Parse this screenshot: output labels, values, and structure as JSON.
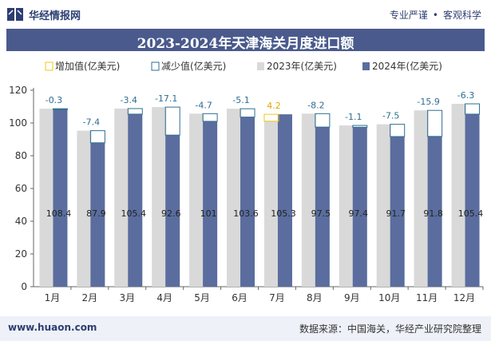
{
  "header": {
    "brand": "华经情报网",
    "tagline_left": "专业严谨",
    "tagline_sep": "•",
    "tagline_right": "客观科学"
  },
  "footer": {
    "site": "www.huaon.com",
    "source": "数据来源：中国海关，华经产业研究院整理"
  },
  "colors": {
    "bar2023": "#d9d9d9",
    "bar2024": "#5a6d9e",
    "increase": "#f5c518",
    "decrease": "#2e6e93",
    "title_bg": "#4a5a8c"
  },
  "chart_data": {
    "type": "bar",
    "title": "2023-2024年天津海关月度进口额",
    "categories": [
      "1月",
      "2月",
      "3月",
      "4月",
      "5月",
      "6月",
      "7月",
      "8月",
      "9月",
      "10月",
      "11月",
      "12月"
    ],
    "series": [
      {
        "name": "2023年(亿美元)",
        "values": [
          108.7,
          95.3,
          108.8,
          109.7,
          105.7,
          108.7,
          101.1,
          105.7,
          98.5,
          99.2,
          107.7,
          111.7
        ]
      },
      {
        "name": "2024年(亿美元)",
        "values": [
          108.4,
          87.9,
          105.4,
          92.6,
          101,
          103.6,
          105.3,
          97.5,
          97.4,
          91.7,
          91.8,
          105.4
        ]
      }
    ],
    "changes": [
      -0.3,
      -7.4,
      -3.4,
      -17.1,
      -4.7,
      -5.1,
      4.2,
      -8.2,
      -1.1,
      -7.5,
      -15.9,
      -6.3
    ],
    "value_labels": [
      "108.4",
      "87.9",
      "105.4",
      "92.6",
      "101",
      "103.6",
      "105.3",
      "97.5",
      "97.4",
      "91.7",
      "91.8",
      "105.4"
    ],
    "change_labels": [
      "-0.3",
      "-7.4",
      "-3.4",
      "-17.1",
      "-4.7",
      "-5.1",
      "4.2",
      "-8.2",
      "-1.1",
      "-7.5",
      "-15.9",
      "-6.3"
    ],
    "legend": [
      "增加值(亿美元)",
      "减少值(亿美元)",
      "2023年(亿美元)",
      "2024年(亿美元)"
    ],
    "legend_position": "top",
    "ylim": [
      0,
      120
    ],
    "yticks": [
      0,
      20,
      40,
      60,
      80,
      100,
      120
    ],
    "grid": false
  }
}
